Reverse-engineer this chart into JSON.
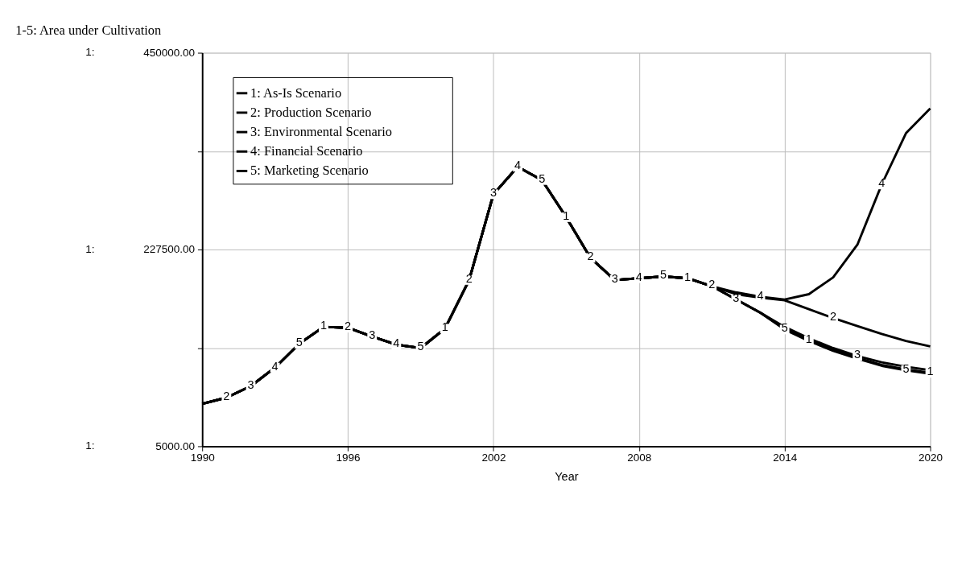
{
  "chart_data": {
    "type": "line",
    "title": "1-5: Area under Cultivation",
    "xlabel": "Year",
    "x": [
      1990,
      1991,
      1992,
      1993,
      1994,
      1995,
      1996,
      1997,
      1998,
      1999,
      2000,
      2001,
      2002,
      2003,
      2004,
      2005,
      2006,
      2007,
      2008,
      2009,
      2010,
      2011,
      2012,
      2013,
      2014,
      2015,
      2016,
      2017,
      2018,
      2019,
      2020
    ],
    "series": [
      {
        "name": "1: As-Is Scenario",
        "color": "#000000",
        "values": [
          53000,
          60000,
          73000,
          94000,
          121000,
          140000,
          139000,
          129000,
          120000,
          116000,
          138000,
          193000,
          290000,
          321000,
          306000,
          264000,
          218000,
          193000,
          195000,
          197000,
          195000,
          186000,
          171000,
          156000,
          138000,
          125000,
          114000,
          105000,
          97000,
          92000,
          88000
        ]
      },
      {
        "name": "2: Production Scenario",
        "color": "#000000",
        "values": [
          53000,
          60000,
          73000,
          94000,
          121000,
          140000,
          139000,
          129000,
          120000,
          116000,
          138000,
          193000,
          290000,
          321000,
          306000,
          264000,
          218000,
          193000,
          195000,
          197000,
          195000,
          186000,
          177000,
          173000,
          170000,
          160000,
          150000,
          141000,
          132000,
          124000,
          118000
        ]
      },
      {
        "name": "3: Environmental Scenario",
        "color": "#000000",
        "values": [
          53000,
          60000,
          73000,
          94000,
          121000,
          140000,
          139000,
          129000,
          120000,
          116000,
          138000,
          193000,
          290000,
          321000,
          306000,
          264000,
          218000,
          193000,
          195000,
          197000,
          195000,
          186000,
          171000,
          156000,
          140000,
          127000,
          116000,
          107000,
          100000,
          95000,
          91000
        ]
      },
      {
        "name": "4: Financial Scenario",
        "color": "#000000",
        "values": [
          53000,
          60000,
          73000,
          94000,
          121000,
          140000,
          139000,
          129000,
          120000,
          116000,
          138000,
          193000,
          290000,
          321000,
          306000,
          264000,
          218000,
          193000,
          195000,
          197000,
          195000,
          186000,
          179000,
          174000,
          171000,
          177000,
          196000,
          233000,
          301000,
          359000,
          387000
        ]
      },
      {
        "name": "5: Marketing Scenario",
        "color": "#000000",
        "values": [
          53000,
          60000,
          73000,
          94000,
          121000,
          140000,
          139000,
          129000,
          120000,
          116000,
          138000,
          193000,
          290000,
          321000,
          306000,
          264000,
          218000,
          193000,
          195000,
          197000,
          195000,
          186000,
          171000,
          156000,
          137000,
          124000,
          113000,
          104000,
          96000,
          91000,
          87000
        ]
      }
    ],
    "annotations": [
      "1:",
      "1:",
      "1:",
      {
        "text": "1",
        "x": 1995,
        "y": 140000
      },
      {
        "text": "1",
        "x": 2000,
        "y": 138000
      },
      {
        "text": "1",
        "x": 2005,
        "y": 264000
      },
      {
        "text": "1",
        "x": 2010,
        "y": 195000
      },
      {
        "text": "1",
        "x": 2015,
        "y": 125000
      },
      {
        "text": "1",
        "x": 2020,
        "y": 88000
      },
      {
        "text": "2",
        "x": 1991,
        "y": 60000
      },
      {
        "text": "2",
        "x": 1996,
        "y": 139000
      },
      {
        "text": "2",
        "x": 2001,
        "y": 193000
      },
      {
        "text": "2",
        "x": 2006,
        "y": 218000
      },
      {
        "text": "2",
        "x": 2011,
        "y": 186000
      },
      {
        "text": "2",
        "x": 2016,
        "y": 150000
      },
      {
        "text": "3",
        "x": 1992,
        "y": 73000
      },
      {
        "text": "3",
        "x": 1997,
        "y": 129000
      },
      {
        "text": "3",
        "x": 2002,
        "y": 290000
      },
      {
        "text": "3",
        "x": 2007,
        "y": 193000
      },
      {
        "text": "3",
        "x": 2012,
        "y": 171000
      },
      {
        "text": "3",
        "x": 2017,
        "y": 107000
      },
      {
        "text": "4",
        "x": 1993,
        "y": 94000
      },
      {
        "text": "4",
        "x": 1998,
        "y": 120000
      },
      {
        "text": "4",
        "x": 2003,
        "y": 321000
      },
      {
        "text": "4",
        "x": 2008,
        "y": 195000
      },
      {
        "text": "4",
        "x": 2013,
        "y": 174000
      },
      {
        "text": "4",
        "x": 2018,
        "y": 301000
      },
      {
        "text": "5",
        "x": 1994,
        "y": 121000
      },
      {
        "text": "5",
        "x": 1999,
        "y": 116000
      },
      {
        "text": "5",
        "x": 2004,
        "y": 306000
      },
      {
        "text": "5",
        "x": 2009,
        "y": 197000
      },
      {
        "text": "5",
        "x": 2014,
        "y": 137000
      },
      {
        "text": "5",
        "x": 2019,
        "y": 91000
      }
    ],
    "xlim": [
      1990,
      2020
    ],
    "xticks": [
      1990,
      1996,
      2002,
      2008,
      2014,
      2020
    ],
    "ylim": [
      5000,
      450000
    ],
    "yticks": [
      {
        "value": 5000,
        "label": "5000.00"
      },
      {
        "value": 116250,
        "label": null
      },
      {
        "value": 227500,
        "label": "227500.00"
      },
      {
        "value": 338750,
        "label": null
      },
      {
        "value": 450000,
        "label": "450000.00"
      }
    ],
    "grid": true,
    "legend": "top left",
    "line_style": "solid"
  }
}
